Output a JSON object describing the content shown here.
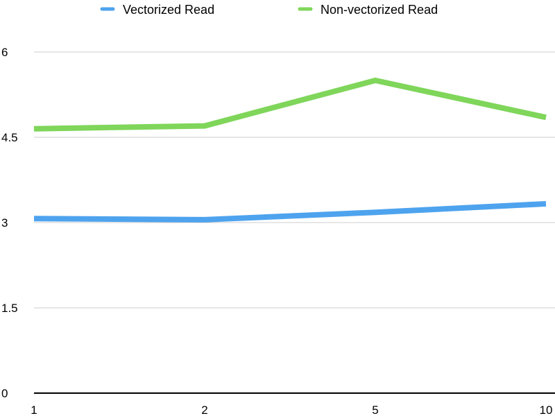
{
  "chart_data": {
    "type": "line",
    "categories": [
      "1",
      "2",
      "5",
      "10"
    ],
    "series": [
      {
        "name": "Vectorized Read",
        "values": [
          3.07,
          3.05,
          3.18,
          3.33
        ],
        "color": "#4ea3ee"
      },
      {
        "name": "Non-vectorized Read",
        "values": [
          4.65,
          4.7,
          5.5,
          4.85
        ],
        "color": "#7fd65a"
      }
    ],
    "ylim": [
      0,
      6
    ],
    "yticks": [
      "0",
      "1.5",
      "3",
      "4.5",
      "6"
    ],
    "grid": true,
    "legend_position": "top-center",
    "gridline_color": "#cccccc",
    "axis_color": "#000000"
  }
}
